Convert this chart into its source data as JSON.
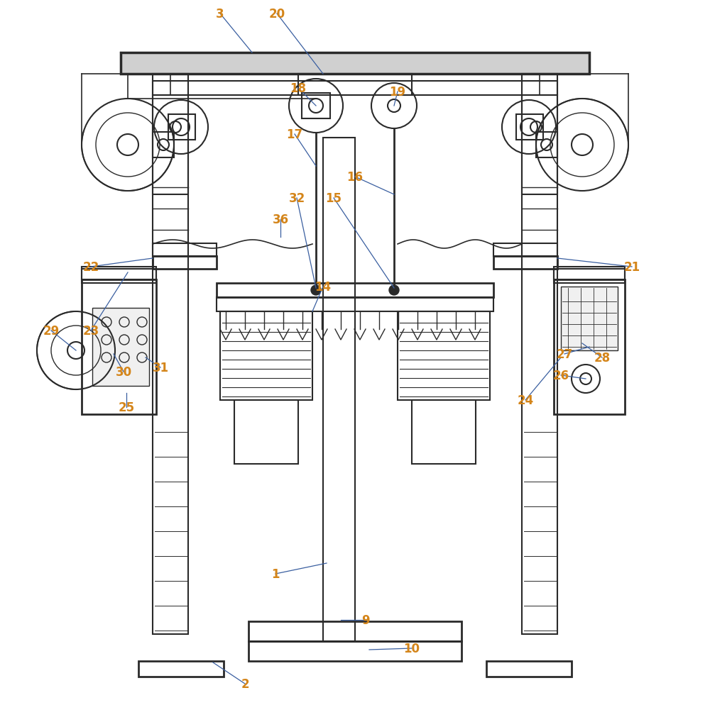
{
  "bg_color": "#ffffff",
  "line_color": "#2a2a2a",
  "label_color_number": "#d4851a",
  "label_color_line": "#3a5fa0",
  "figsize": [
    10.0,
    9.95
  ],
  "dpi": 100
}
